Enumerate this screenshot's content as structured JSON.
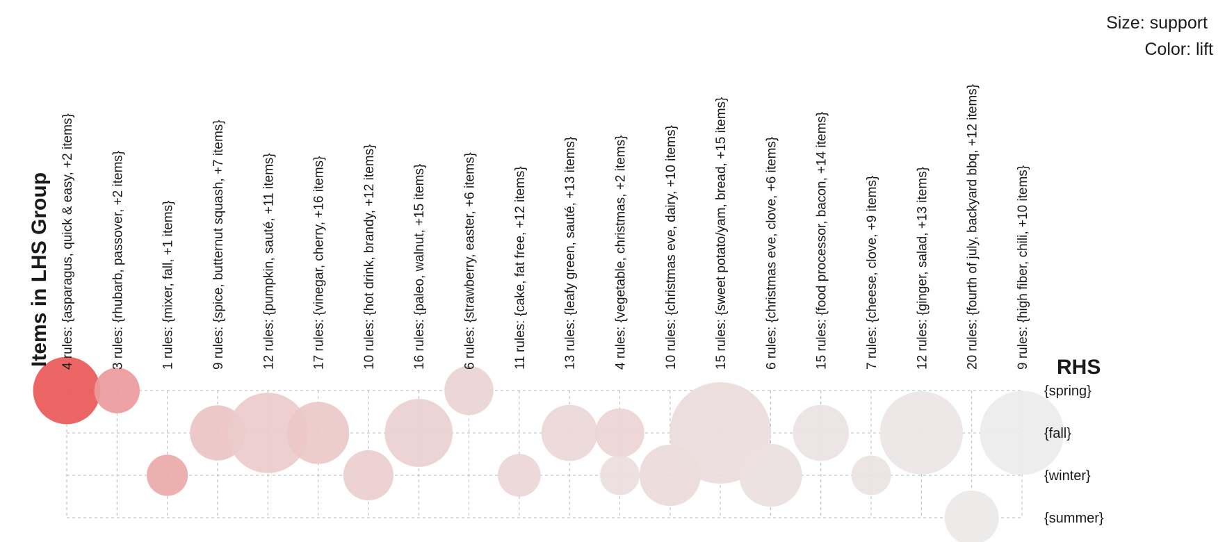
{
  "chart_data": {
    "type": "grouped-matrix-bubble",
    "title": "",
    "xlabel": "Items in LHS Group",
    "ylabel": "RHS",
    "legend": {
      "size": "Size: support",
      "color": "Color: lift",
      "placement": "top-right"
    },
    "grid": true,
    "groups": [
      "4 rules: {asparagus, quick & easy, +2 items}",
      "3 rules: {rhubarb, passover, +2 items}",
      "1 rules: {mixer, fall, +1 items}",
      "9 rules: {spice, butternut squash, +7 items}",
      "12 rules: {pumpkin, sauté, +11 items}",
      "17 rules: {vinegar, cherry, +16 items}",
      "10 rules: {hot drink, brandy, +12 items}",
      "16 rules: {paleo, walnut, +15 items}",
      "6 rules: {strawberry, easter, +6 items}",
      "11 rules: {cake, fat free, +12 items}",
      "13 rules: {leafy green, sauté, +13 items}",
      "4 rules: {vegetable, christmas, +2 items}",
      "10 rules: {christmas eve, dairy, +10 items}",
      "15 rules: {sweet potato/yam, bread, +15 items}",
      "6 rules: {christmas eve, clove, +6 items}",
      "15 rules: {food processor, bacon, +14 items}",
      "7 rules: {cheese, clove, +9 items}",
      "12 rules: {ginger, salad, +13 items}",
      "20 rules: {fourth of july, backyard bbq, +12 items}",
      "9 rules: {high fiber, chili, +10 items}"
    ],
    "rhs": [
      "{spring}",
      "{fall}",
      "{winter}",
      "{summer}"
    ],
    "color_scale": {
      "low": "#ececec",
      "high": "#ea5858"
    },
    "size_scale_note": "relative support, larger = more support",
    "points": [
      {
        "group": 0,
        "rhs": 0,
        "support": 0.34,
        "lift": 1.0
      },
      {
        "group": 1,
        "rhs": 0,
        "support": 0.1,
        "lift": 0.55
      },
      {
        "group": 2,
        "rhs": 2,
        "support": 0.07,
        "lift": 0.45
      },
      {
        "group": 3,
        "rhs": 1,
        "support": 0.19,
        "lift": 0.28
      },
      {
        "group": 4,
        "rhs": 1,
        "support": 0.55,
        "lift": 0.22
      },
      {
        "group": 5,
        "rhs": 1,
        "support": 0.27,
        "lift": 0.24
      },
      {
        "group": 6,
        "rhs": 2,
        "support": 0.14,
        "lift": 0.2
      },
      {
        "group": 7,
        "rhs": 1,
        "support": 0.35,
        "lift": 0.19
      },
      {
        "group": 8,
        "rhs": 0,
        "support": 0.13,
        "lift": 0.17
      },
      {
        "group": 9,
        "rhs": 2,
        "support": 0.08,
        "lift": 0.15
      },
      {
        "group": 10,
        "rhs": 1,
        "support": 0.2,
        "lift": 0.14
      },
      {
        "group": 11,
        "rhs": 1,
        "support": 0.13,
        "lift": 0.16
      },
      {
        "group": 11,
        "rhs": 2,
        "support": 0.06,
        "lift": 0.1
      },
      {
        "group": 12,
        "rhs": 2,
        "support": 0.26,
        "lift": 0.12
      },
      {
        "group": 13,
        "rhs": 1,
        "support": 1.0,
        "lift": 0.11
      },
      {
        "group": 14,
        "rhs": 2,
        "support": 0.28,
        "lift": 0.09
      },
      {
        "group": 15,
        "rhs": 1,
        "support": 0.2,
        "lift": 0.06
      },
      {
        "group": 16,
        "rhs": 2,
        "support": 0.06,
        "lift": 0.07
      },
      {
        "group": 17,
        "rhs": 1,
        "support": 0.6,
        "lift": 0.05
      },
      {
        "group": 18,
        "rhs": 3,
        "support": 0.18,
        "lift": 0.03
      },
      {
        "group": 19,
        "rhs": 1,
        "support": 0.62,
        "lift": 0.0
      }
    ]
  }
}
